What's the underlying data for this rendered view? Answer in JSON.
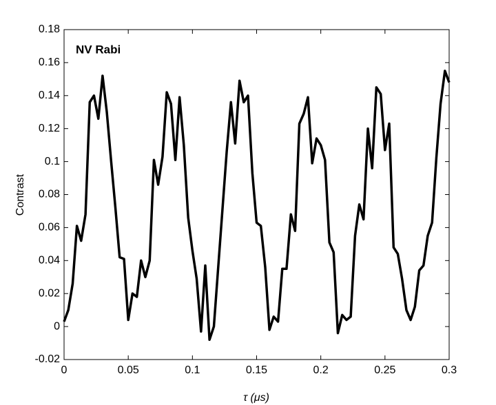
{
  "chart_data": {
    "type": "line",
    "title": "NV Rabi",
    "xlabel": "τ (μs)",
    "ylabel": "Contrast",
    "x": [
      0,
      0.0033,
      0.0067,
      0.01,
      0.0133,
      0.0167,
      0.02,
      0.0233,
      0.0267,
      0.03,
      0.0333,
      0.0367,
      0.04,
      0.0433,
      0.0467,
      0.05,
      0.0533,
      0.0567,
      0.06,
      0.0633,
      0.0667,
      0.07,
      0.0733,
      0.0767,
      0.08,
      0.0833,
      0.0867,
      0.09,
      0.0933,
      0.0967,
      0.1,
      0.1033,
      0.1067,
      0.11,
      0.1133,
      0.1167,
      0.12,
      0.1233,
      0.1267,
      0.13,
      0.1333,
      0.1367,
      0.14,
      0.1433,
      0.1467,
      0.15,
      0.1533,
      0.1567,
      0.16,
      0.1633,
      0.1667,
      0.17,
      0.1733,
      0.1767,
      0.18,
      0.1833,
      0.1867,
      0.19,
      0.1933,
      0.1967,
      0.2,
      0.2033,
      0.2067,
      0.21,
      0.2133,
      0.2167,
      0.22,
      0.2233,
      0.2267,
      0.23,
      0.2333,
      0.2367,
      0.24,
      0.2433,
      0.2467,
      0.25,
      0.2533,
      0.2567,
      0.26,
      0.2633,
      0.2667,
      0.27,
      0.2733,
      0.2767,
      0.28,
      0.2833,
      0.2867,
      0.29,
      0.2933,
      0.2967,
      0.3
    ],
    "series": [
      {
        "name": "Contrast",
        "color": "#000000",
        "values": [
          0.003,
          0.01,
          0.026,
          0.061,
          0.052,
          0.068,
          0.136,
          0.14,
          0.126,
          0.152,
          0.13,
          0.1,
          0.072,
          0.042,
          0.041,
          0.004,
          0.02,
          0.018,
          0.04,
          0.03,
          0.04,
          0.101,
          0.086,
          0.103,
          0.142,
          0.135,
          0.101,
          0.139,
          0.11,
          0.066,
          0.046,
          0.029,
          -0.003,
          0.037,
          -0.008,
          0.0,
          0.035,
          0.07,
          0.106,
          0.136,
          0.111,
          0.149,
          0.136,
          0.14,
          0.093,
          0.063,
          0.061,
          0.036,
          -0.002,
          0.006,
          0.003,
          0.035,
          0.035,
          0.068,
          0.058,
          0.123,
          0.129,
          0.139,
          0.099,
          0.114,
          0.11,
          0.101,
          0.051,
          0.045,
          -0.004,
          0.007,
          0.004,
          0.006,
          0.055,
          0.074,
          0.065,
          0.12,
          0.096,
          0.145,
          0.141,
          0.107,
          0.123,
          0.048,
          0.044,
          0.029,
          0.01,
          0.004,
          0.012,
          0.034,
          0.037,
          0.055,
          0.063,
          0.102,
          0.135,
          0.155,
          0.148
        ]
      }
    ],
    "xlim": [
      0,
      0.3
    ],
    "xticks": [
      0,
      0.05,
      0.1,
      0.15,
      0.2,
      0.25,
      0.3
    ],
    "ylim": [
      -0.02,
      0.18
    ],
    "yticks": [
      -0.02,
      0,
      0.02,
      0.04,
      0.06,
      0.08,
      0.1,
      0.12,
      0.14,
      0.16,
      0.18
    ],
    "grid": false
  }
}
